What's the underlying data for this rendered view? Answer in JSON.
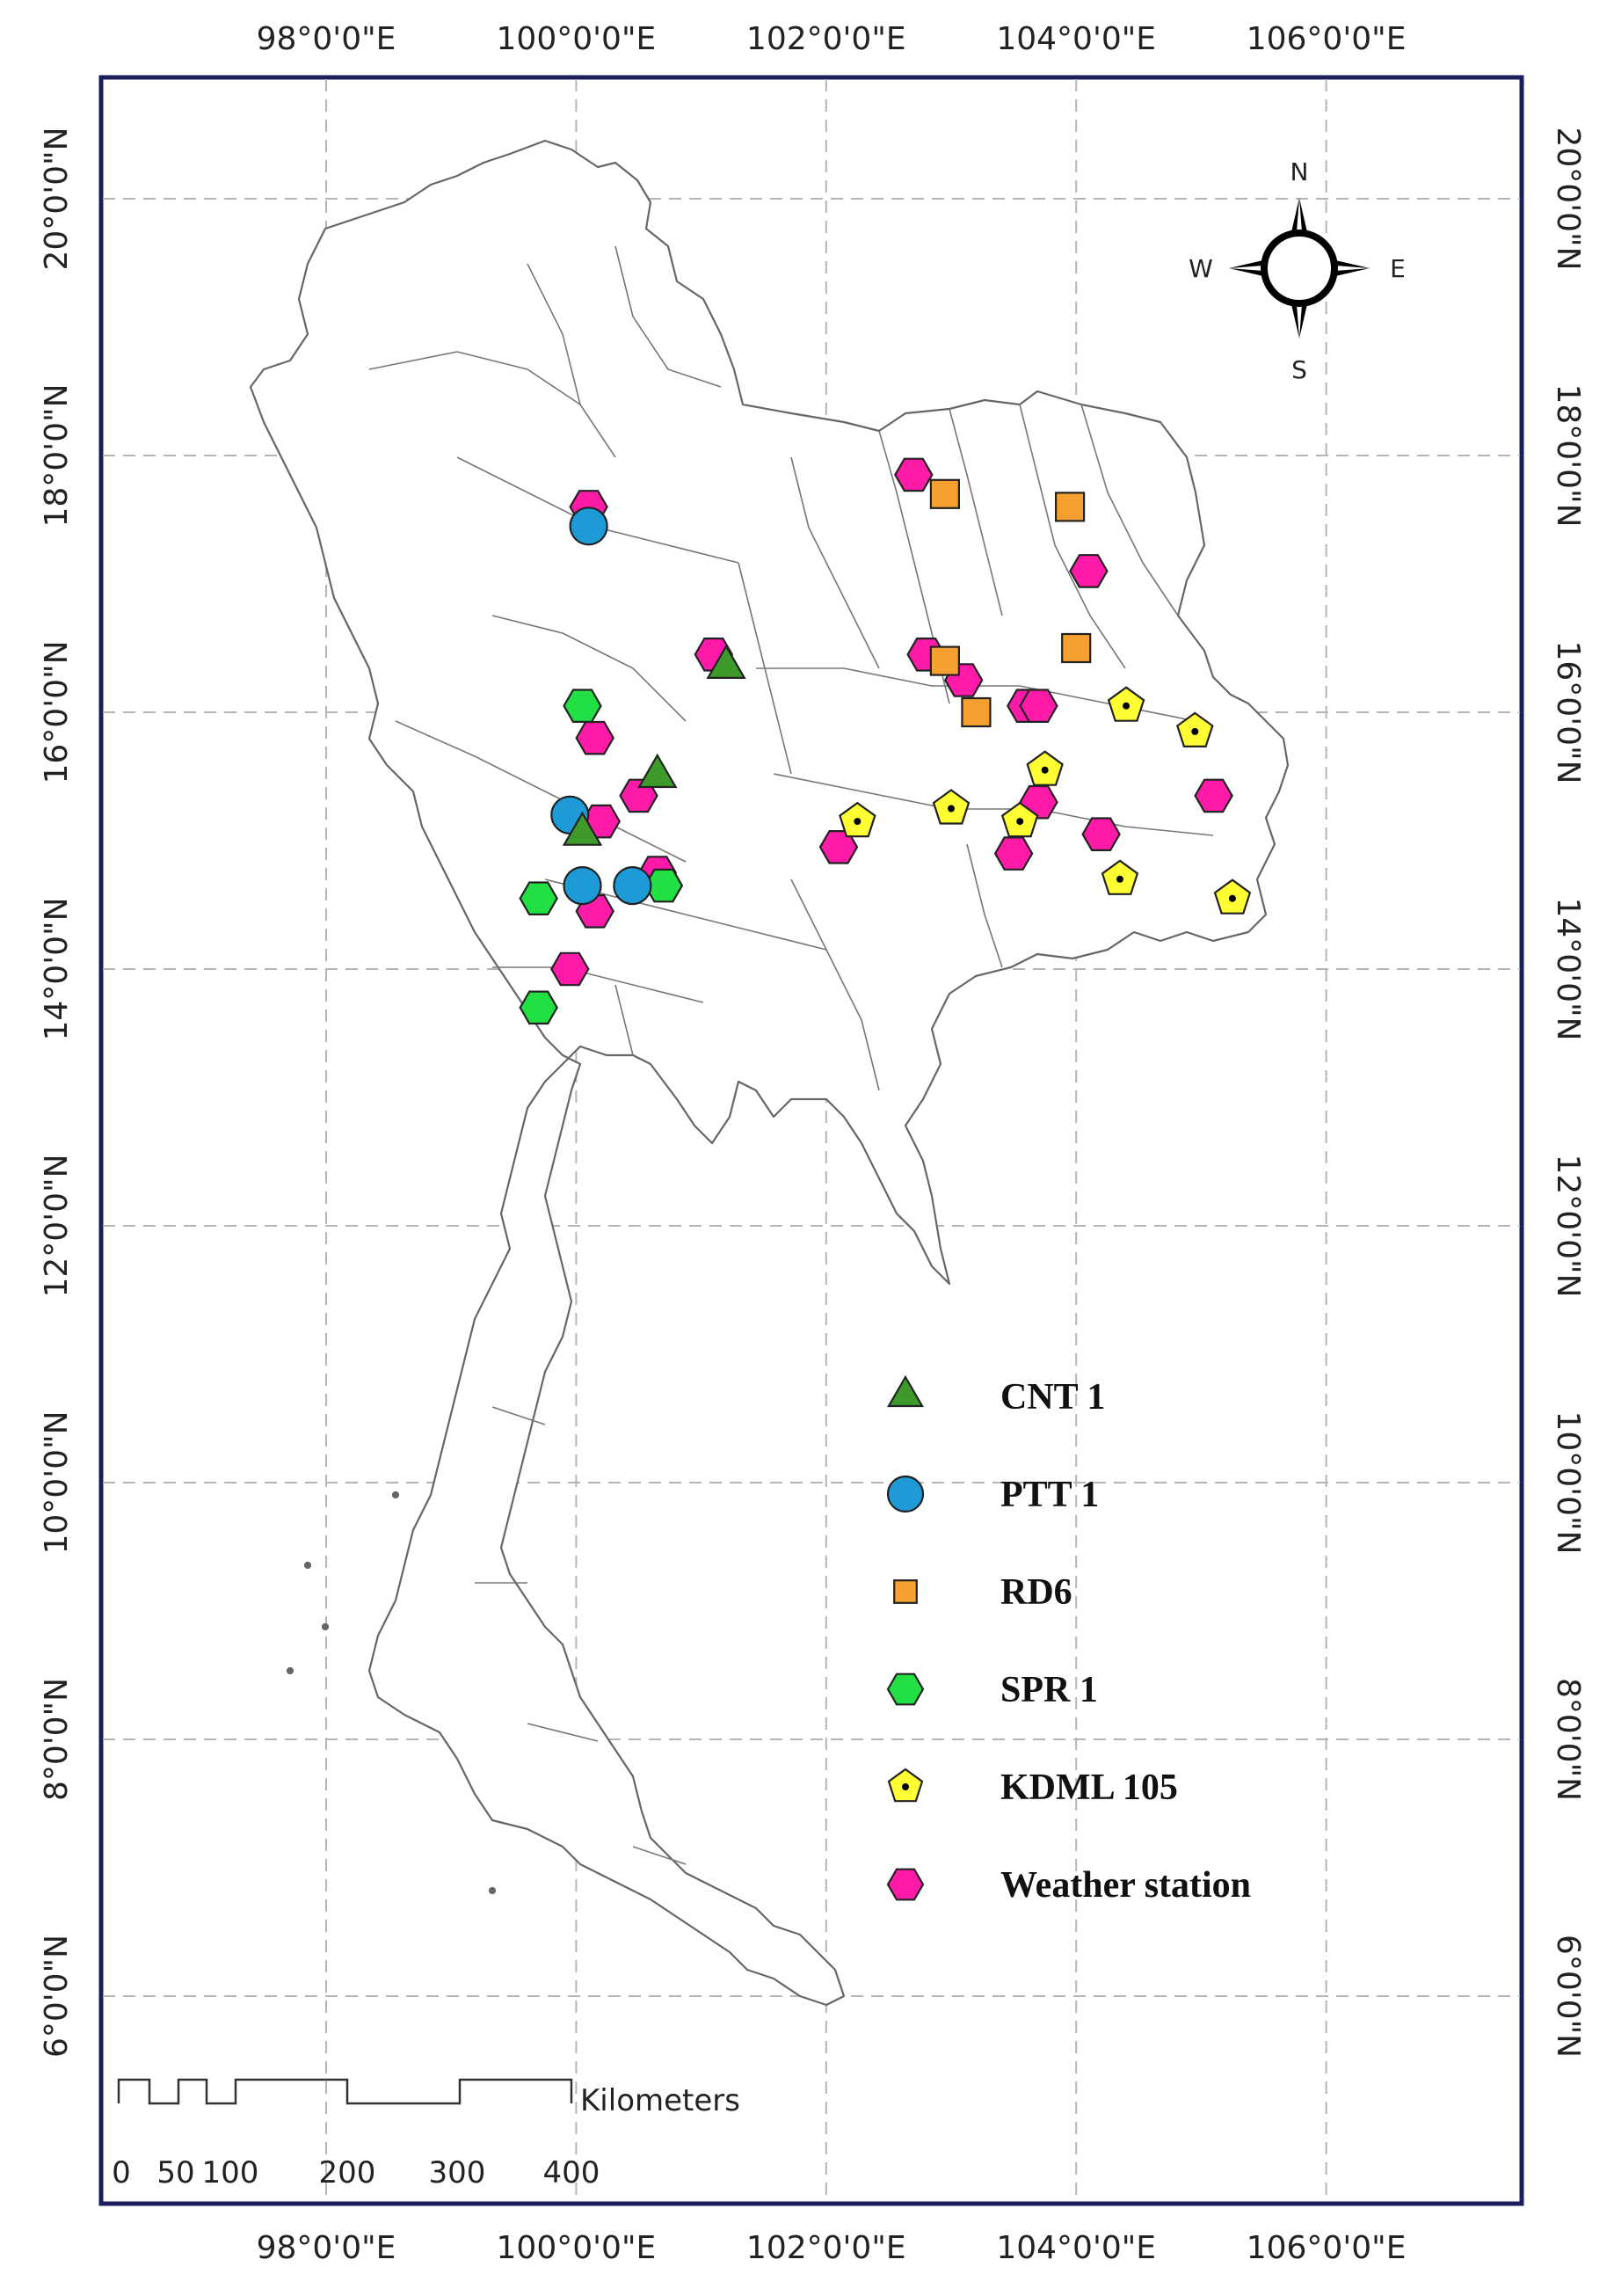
{
  "map": {
    "longitude_labels": [
      "98°0'0\"E",
      "100°0'0\"E",
      "102°0'0\"E",
      "104°0'0\"E",
      "106°0'0\"E"
    ],
    "latitude_labels": [
      "20°0'0\"N",
      "18°0'0\"N",
      "16°0'0\"N",
      "14°0'0\"N",
      "12°0'0\"N",
      "10°0'0\"N",
      "8°0'0\"N",
      "6°0'0\"N"
    ],
    "north_arrow": {
      "n": "N",
      "s": "S",
      "e": "E",
      "w": "W",
      "icon": "compass-rose-icon"
    },
    "scale_bar": {
      "unit": "Kilometers",
      "ticks": [
        "0",
        "50",
        "100",
        "200",
        "300",
        "400"
      ]
    },
    "legend": [
      {
        "label": "CNT 1",
        "symbol": "triangle",
        "color": "#3f9a2c"
      },
      {
        "label": "PTT 1",
        "symbol": "circle",
        "color": "#1e9bd7"
      },
      {
        "label": "RD6",
        "symbol": "square",
        "color": "#f5a030"
      },
      {
        "label": "SPR 1",
        "symbol": "hexagon",
        "color": "#22e044"
      },
      {
        "label": "KDML 105",
        "symbol": "pentagon",
        "color": "#ffff33"
      },
      {
        "label": "Weather station",
        "symbol": "hexagon",
        "color": "#ff1aa8"
      }
    ],
    "sites": {
      "CNT 1": [
        [
          101.2,
          16.35
        ],
        [
          100.65,
          15.5
        ],
        [
          100.05,
          15.05
        ]
      ],
      "PTT 1": [
        [
          100.1,
          17.45
        ],
        [
          99.95,
          15.2
        ],
        [
          100.05,
          14.65
        ],
        [
          100.45,
          14.65
        ]
      ],
      "RD6": [
        [
          102.95,
          17.7
        ],
        [
          103.95,
          17.6
        ],
        [
          102.95,
          16.4
        ],
        [
          103.2,
          16.0
        ],
        [
          104.0,
          16.5
        ]
      ],
      "SPR 1": [
        [
          100.05,
          16.05
        ],
        [
          99.7,
          14.55
        ],
        [
          100.7,
          14.65
        ],
        [
          99.7,
          13.7
        ]
      ],
      "KDML 105": [
        [
          104.4,
          16.05
        ],
        [
          104.95,
          15.85
        ],
        [
          103.75,
          15.55
        ],
        [
          102.25,
          15.15
        ],
        [
          103.0,
          15.25
        ],
        [
          103.55,
          15.15
        ],
        [
          104.35,
          14.7
        ],
        [
          105.25,
          14.55
        ]
      ],
      "Weather station": [
        [
          102.7,
          17.85
        ],
        [
          100.1,
          17.6
        ],
        [
          104.1,
          17.1
        ],
        [
          101.1,
          16.45
        ],
        [
          102.8,
          16.45
        ],
        [
          103.1,
          16.25
        ],
        [
          103.6,
          16.05
        ],
        [
          103.7,
          16.05
        ],
        [
          100.15,
          15.8
        ],
        [
          100.5,
          15.35
        ],
        [
          103.7,
          15.3
        ],
        [
          100.2,
          15.15
        ],
        [
          105.1,
          15.35
        ],
        [
          102.1,
          14.95
        ],
        [
          104.2,
          15.05
        ],
        [
          100.65,
          14.75
        ],
        [
          103.5,
          14.9
        ],
        [
          100.15,
          14.45
        ],
        [
          99.95,
          14.0
        ]
      ]
    }
  }
}
